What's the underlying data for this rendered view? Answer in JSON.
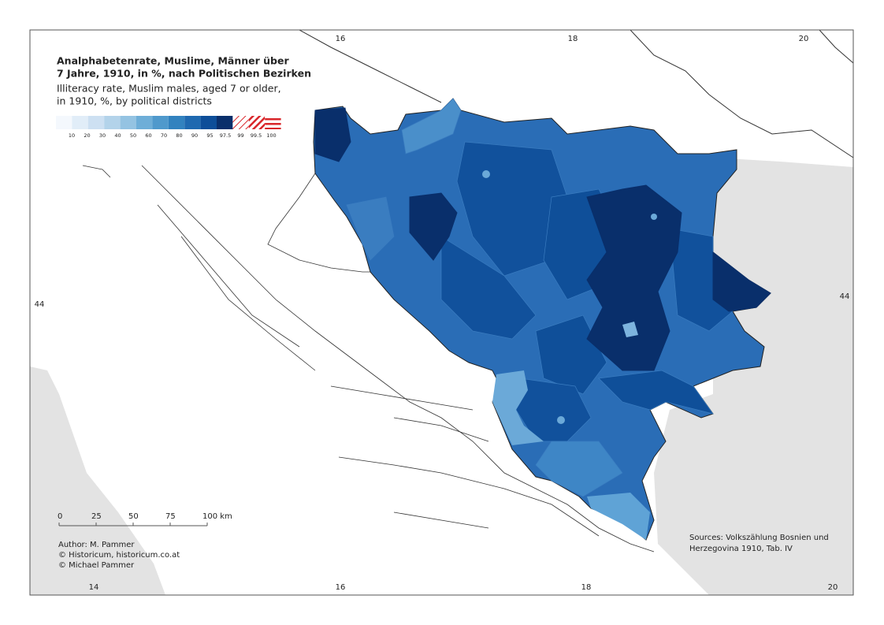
{
  "map": {
    "title": [
      "Analphabetenrate, Muslime, Männer über",
      "7 Jahre, 1910, in %, nach Politischen Bezirken"
    ],
    "subtitle": [
      "Illiteracy rate, Muslim males, aged 7 or older,",
      "in 1910, %, by political districts"
    ],
    "legend": [
      {
        "label": "10",
        "color": "#f4f8fd"
      },
      {
        "label": "20",
        "color": "#e1edf8"
      },
      {
        "label": "30",
        "color": "#cde0f2"
      },
      {
        "label": "40",
        "color": "#b3d3ea"
      },
      {
        "label": "50",
        "color": "#94c3e2"
      },
      {
        "label": "60",
        "color": "#6eaed8"
      },
      {
        "label": "70",
        "color": "#4f99cc"
      },
      {
        "label": "80",
        "color": "#3282bf"
      },
      {
        "label": "90",
        "color": "#1f69b0"
      },
      {
        "label": "95",
        "color": "#0e4e99"
      },
      {
        "label": "97.5",
        "color": "#0a2f6b"
      },
      {
        "label": "99",
        "color": "#d9262a",
        "hatch": "sparse"
      },
      {
        "label": "99.5",
        "color": "#d9262a",
        "hatch": "dense"
      },
      {
        "label": "100",
        "color": "#d9262a",
        "hatch": "horizontal"
      }
    ],
    "scale": [
      "0",
      "25",
      "50",
      "75",
      "100 km"
    ],
    "coordinates": {
      "top": [
        "16",
        "18",
        "20"
      ],
      "bottom": [
        "14",
        "16",
        "18",
        "20"
      ],
      "left": "44",
      "right": "44"
    },
    "credits": [
      "Author: M. Pammer",
      "© Historicum, historicum.co.at",
      "© Michael Pammer"
    ],
    "sources": [
      "Sources: Volkszählung Bosnien und",
      "Herzegovina 1910, Tab. IV"
    ]
  }
}
